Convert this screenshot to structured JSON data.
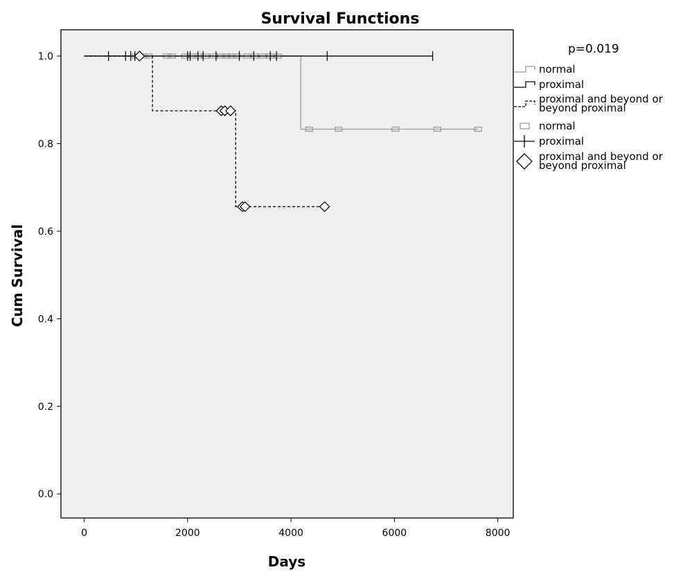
{
  "chart_data": {
    "type": "line",
    "title": "Survival Functions",
    "xlabel": "Days",
    "ylabel": "Cum Survival",
    "xlim": [
      -450,
      8300
    ],
    "ylim": [
      -0.055,
      1.06
    ],
    "xticks": [
      0,
      2000,
      4000,
      6000,
      8000
    ],
    "yticks": [
      0.0,
      0.2,
      0.4,
      0.6,
      0.8,
      1.0
    ],
    "grid": false,
    "annotation": "p=0.019",
    "legend_position": "right",
    "series": [
      {
        "name": "normal",
        "color": "#9b9b9b",
        "dash": "none",
        "censor_marker": "square",
        "steps": [
          [
            0,
            1.0
          ],
          [
            4190,
            0.833
          ],
          [
            7620,
            0.833
          ]
        ],
        "censored": [
          [
            1000,
            1.0
          ],
          [
            1150,
            1.0
          ],
          [
            1250,
            1.0
          ],
          [
            1600,
            1.0
          ],
          [
            1700,
            1.0
          ],
          [
            1950,
            1.0
          ],
          [
            2100,
            1.0
          ],
          [
            2200,
            1.0
          ],
          [
            2350,
            1.0
          ],
          [
            2500,
            1.0
          ],
          [
            2650,
            1.0
          ],
          [
            2750,
            1.0
          ],
          [
            2850,
            1.0
          ],
          [
            2950,
            1.0
          ],
          [
            3150,
            1.0
          ],
          [
            3300,
            1.0
          ],
          [
            3450,
            1.0
          ],
          [
            3600,
            1.0
          ],
          [
            3750,
            1.0
          ],
          [
            4350,
            0.833
          ],
          [
            4920,
            0.833
          ],
          [
            6020,
            0.833
          ],
          [
            6830,
            0.833
          ],
          [
            7620,
            0.833
          ]
        ]
      },
      {
        "name": "proximal",
        "color": "#000000",
        "dash": "none",
        "censor_marker": "plus",
        "steps": [
          [
            0,
            1.0
          ],
          [
            6740,
            1.0
          ]
        ],
        "censored": [
          [
            470,
            1.0
          ],
          [
            800,
            1.0
          ],
          [
            900,
            1.0
          ],
          [
            980,
            1.0
          ],
          [
            2000,
            1.0
          ],
          [
            2050,
            1.0
          ],
          [
            2200,
            1.0
          ],
          [
            2300,
            1.0
          ],
          [
            2550,
            1.0
          ],
          [
            3000,
            1.0
          ],
          [
            3280,
            1.0
          ],
          [
            3600,
            1.0
          ],
          [
            3720,
            1.0
          ],
          [
            4700,
            1.0
          ],
          [
            6740,
            1.0
          ]
        ]
      },
      {
        "name": "proximal and beyond or beyond proximal",
        "color": "#000000",
        "dash": "4,3",
        "censor_marker": "diamond",
        "steps": [
          [
            0,
            1.0
          ],
          [
            1320,
            0.875
          ],
          [
            2930,
            0.656
          ],
          [
            4650,
            0.656
          ]
        ],
        "censored": [
          [
            1070,
            1.0
          ],
          [
            2650,
            0.875
          ],
          [
            2720,
            0.875
          ],
          [
            2830,
            0.875
          ],
          [
            3060,
            0.656
          ],
          [
            3110,
            0.656
          ],
          [
            4650,
            0.656
          ]
        ]
      }
    ]
  }
}
